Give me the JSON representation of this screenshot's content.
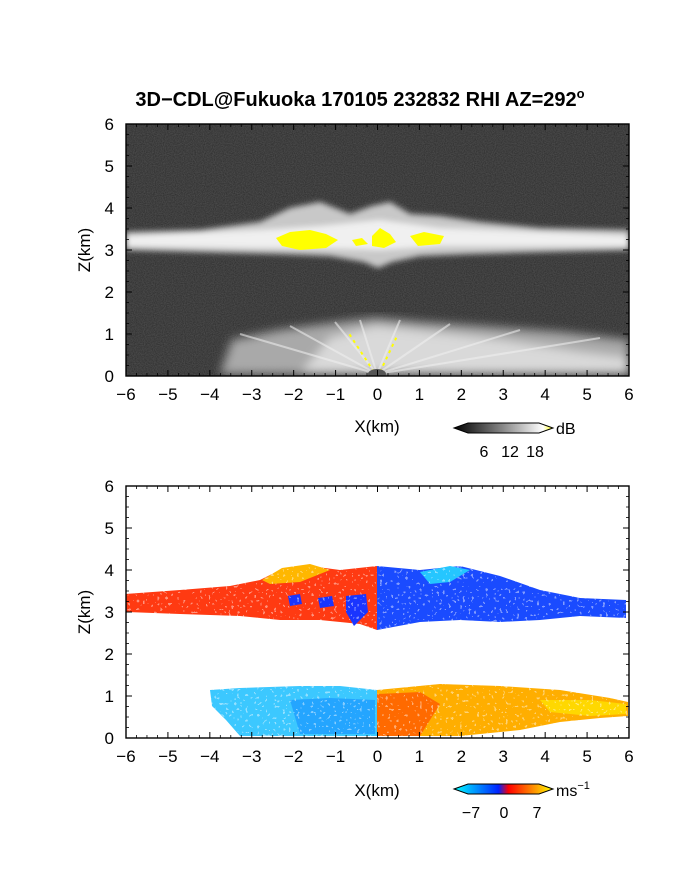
{
  "title": "3D−CDL@Fukuoka 170105 232832 RHI AZ=292",
  "title_superscript": "o",
  "chart_data": [
    {
      "type": "heatmap",
      "field": "signal intensity",
      "xlabel": "X(km)",
      "ylabel": "Z(km)",
      "xlim": [
        -6,
        6
      ],
      "ylim": [
        0,
        6
      ],
      "xticks": [
        "−6",
        "−5",
        "−4",
        "−3",
        "−2",
        "−1",
        "0",
        "1",
        "2",
        "3",
        "4",
        "5",
        "6"
      ],
      "yticks": [
        "0",
        "1",
        "2",
        "3",
        "4",
        "5",
        "6"
      ],
      "colorbar": {
        "unit": "dB",
        "ticks": [
          "6",
          "12",
          "18"
        ],
        "colors": [
          "#000000",
          "#8a8a8a",
          "#ffffff",
          "#ffff00"
        ]
      },
      "features": [
        {
          "name": "cloud layer",
          "z_bottom": 2.9,
          "z_top": 3.35,
          "z_top_max": 4.2,
          "x_range": [
            -6,
            6
          ]
        },
        {
          "name": "saturated core",
          "color": "#ffff00",
          "z_range": [
            3.05,
            3.45
          ],
          "x_range": [
            -2.4,
            1.5
          ]
        },
        {
          "name": "near-ground fan",
          "z_top": 1.25,
          "x_range": [
            -4.7,
            6
          ]
        }
      ]
    },
    {
      "type": "heatmap",
      "field": "Doppler velocity",
      "xlabel": "X(km)",
      "ylabel": "Z(km)",
      "xlim": [
        -6,
        6
      ],
      "ylim": [
        0,
        6
      ],
      "xticks": [
        "−6",
        "−5",
        "−4",
        "−3",
        "−2",
        "−1",
        "0",
        "1",
        "2",
        "3",
        "4",
        "5",
        "6"
      ],
      "yticks": [
        "0",
        "1",
        "2",
        "3",
        "4",
        "5",
        "6"
      ],
      "colorbar": {
        "unit": "ms",
        "unit_superscript": "−1",
        "ticks": [
          "−7",
          "0",
          "7"
        ],
        "colors": [
          "#00ffff",
          "#0022ff",
          "#ff0000",
          "#ffff00"
        ]
      },
      "features": [
        {
          "name": "upper layer, x<0",
          "color": "#ff3300",
          "z_range": [
            2.9,
            3.6
          ],
          "x_range": [
            -6,
            0
          ]
        },
        {
          "name": "upper layer, x>0",
          "color": "#0044ff",
          "z_range": [
            2.8,
            3.6
          ],
          "x_range": [
            0,
            6
          ]
        },
        {
          "name": "lower layer, x<0",
          "color": "#22b8ff",
          "z_range": [
            0,
            1.2
          ],
          "x_range": [
            -4.1,
            0
          ]
        },
        {
          "name": "lower layer, x>0",
          "color": "#ffaa00",
          "z_range": [
            0,
            1.2
          ],
          "x_range": [
            0,
            6
          ]
        }
      ]
    }
  ]
}
